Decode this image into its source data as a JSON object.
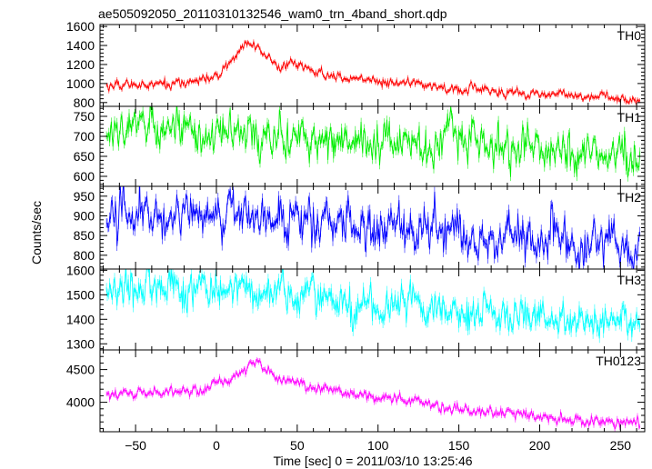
{
  "chart_data": {
    "type": "line",
    "title": "ae505092050_20110310132546_wam0_trn_4band_short.qdp",
    "xlabel": "Time [sec] 0 = 2011/03/10 13:25:46",
    "ylabel": "Counts/sec",
    "xlim": [
      -72,
      265
    ],
    "x_ticks": [
      -50,
      0,
      50,
      100,
      150,
      200,
      250
    ],
    "x_tick_labels": [
      "−50",
      "0",
      "50",
      "100",
      "150",
      "200",
      "250"
    ],
    "x_start": -68,
    "x_end": 262,
    "x_step": 0.5,
    "panels": [
      {
        "name": "TH0",
        "color": "#ff0000",
        "ylim": [
          760,
          1620
        ],
        "y_ticks": [
          800,
          1000,
          1200,
          1400,
          1600
        ],
        "y_tick_labels": [
          "800",
          "1000",
          "1200",
          "1400",
          "1600"
        ],
        "noise": 28,
        "error": 20,
        "trend": [
          [
            -68,
            980
          ],
          [
            -20,
            1000
          ],
          [
            0,
            1070
          ],
          [
            10,
            1240
          ],
          [
            15,
            1350
          ],
          [
            20,
            1470
          ],
          [
            24,
            1400
          ],
          [
            30,
            1320
          ],
          [
            40,
            1150
          ],
          [
            47,
            1230
          ],
          [
            55,
            1150
          ],
          [
            70,
            1090
          ],
          [
            100,
            1030
          ],
          [
            150,
            940
          ],
          [
            200,
            890
          ],
          [
            240,
            860
          ],
          [
            262,
            820
          ]
        ]
      },
      {
        "name": "TH1",
        "color": "#00ee00",
        "ylim": [
          575,
          775
        ],
        "y_ticks": [
          600,
          650,
          700,
          750
        ],
        "y_tick_labels": [
          "600",
          "650",
          "700",
          "750"
        ],
        "noise": 28,
        "error": 10,
        "trend": [
          [
            -68,
            720
          ],
          [
            0,
            715
          ],
          [
            50,
            700
          ],
          [
            100,
            690
          ],
          [
            150,
            680
          ],
          [
            200,
            670
          ],
          [
            262,
            650
          ]
        ]
      },
      {
        "name": "TH2",
        "color": "#0000ff",
        "ylim": [
          765,
          975
        ],
        "y_ticks": [
          800,
          850,
          900,
          950
        ],
        "y_tick_labels": [
          "800",
          "850",
          "900",
          "950"
        ],
        "noise": 30,
        "error": 12,
        "trend": [
          [
            -68,
            900
          ],
          [
            0,
            900
          ],
          [
            50,
            890
          ],
          [
            100,
            875
          ],
          [
            150,
            855
          ],
          [
            200,
            845
          ],
          [
            262,
            820
          ]
        ]
      },
      {
        "name": "TH3",
        "color": "#00ffff",
        "ylim": [
          1275,
          1605
        ],
        "y_ticks": [
          1300,
          1400,
          1500,
          1600
        ],
        "y_tick_labels": [
          "1300",
          "1400",
          "1500",
          "1600"
        ],
        "noise": 42,
        "error": 18,
        "trend": [
          [
            -68,
            1520
          ],
          [
            0,
            1515
          ],
          [
            50,
            1500
          ],
          [
            100,
            1460
          ],
          [
            150,
            1430
          ],
          [
            200,
            1410
          ],
          [
            262,
            1380
          ]
        ]
      },
      {
        "name": "TH0123",
        "color": "#ff00ff",
        "ylim": [
          3550,
          4800
        ],
        "y_ticks": [
          4000,
          4500
        ],
        "y_tick_labels": [
          "4000",
          "4500"
        ],
        "noise": 45,
        "error": 35,
        "trend": [
          [
            -68,
            4120
          ],
          [
            -10,
            4180
          ],
          [
            10,
            4350
          ],
          [
            20,
            4580
          ],
          [
            25,
            4620
          ],
          [
            32,
            4450
          ],
          [
            45,
            4300
          ],
          [
            70,
            4200
          ],
          [
            100,
            4100
          ],
          [
            150,
            3900
          ],
          [
            200,
            3780
          ],
          [
            262,
            3650
          ]
        ]
      }
    ]
  }
}
